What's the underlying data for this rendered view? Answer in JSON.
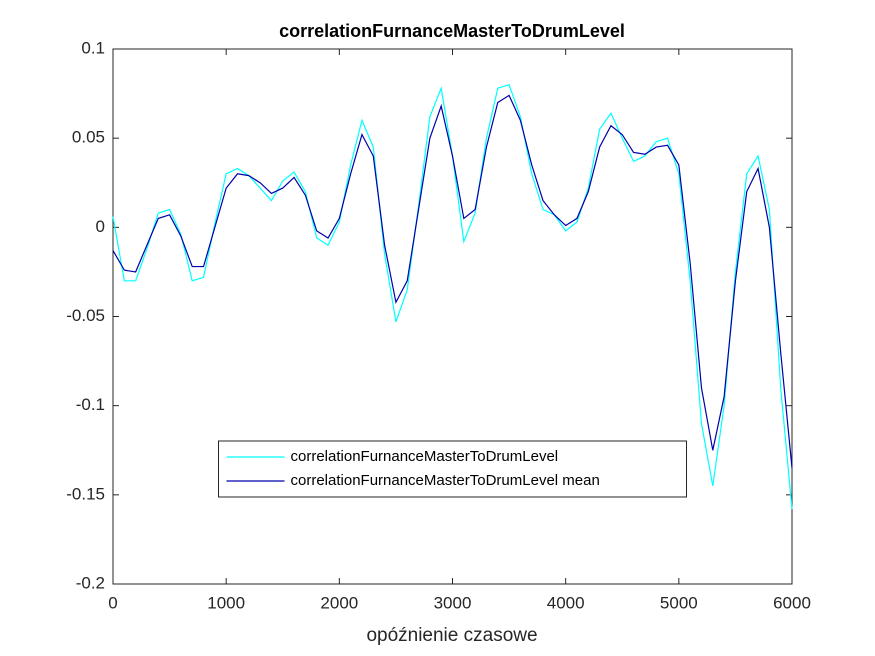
{
  "chart_data": {
    "type": "line",
    "title": "correlationFurnanceMasterToDrumLevel",
    "xlabel": "opóźnienie czasowe",
    "x": [
      0,
      100,
      200,
      300,
      400,
      500,
      600,
      700,
      800,
      900,
      1000,
      1100,
      1200,
      1300,
      1400,
      1500,
      1600,
      1700,
      1800,
      1900,
      2000,
      2100,
      2200,
      2300,
      2400,
      2500,
      2600,
      2700,
      2800,
      2900,
      3000,
      3100,
      3200,
      3300,
      3400,
      3500,
      3600,
      3700,
      3800,
      3900,
      4000,
      4100,
      4200,
      4300,
      4400,
      4500,
      4600,
      4700,
      4800,
      4900,
      5000,
      5100,
      5200,
      5300,
      5400,
      5500,
      5600,
      5700,
      5800,
      5900,
      6000
    ],
    "series": [
      {
        "name": "correlationFurnanceMasterToDrumLevel",
        "color": "#00ffff",
        "values": [
          0.006,
          -0.03,
          -0.03,
          -0.012,
          0.008,
          0.01,
          -0.004,
          -0.03,
          -0.028,
          0.002,
          0.03,
          0.033,
          0.029,
          0.022,
          0.015,
          0.026,
          0.031,
          0.02,
          -0.006,
          -0.01,
          0.003,
          0.035,
          0.06,
          0.045,
          -0.015,
          -0.053,
          -0.035,
          0.012,
          0.062,
          0.078,
          0.04,
          -0.008,
          0.008,
          0.05,
          0.078,
          0.08,
          0.062,
          0.03,
          0.01,
          0.007,
          -0.002,
          0.003,
          0.022,
          0.055,
          0.064,
          0.05,
          0.037,
          0.04,
          0.048,
          0.05,
          0.03,
          -0.03,
          -0.11,
          -0.145,
          -0.1,
          -0.025,
          0.03,
          0.04,
          0.01,
          -0.09,
          -0.158
        ]
      },
      {
        "name": "correlationFurnanceMasterToDrumLevel mean",
        "color": "#0000aa",
        "values": [
          -0.013,
          -0.024,
          -0.025,
          -0.01,
          0.005,
          0.007,
          -0.005,
          -0.022,
          -0.022,
          0.0,
          0.022,
          0.03,
          0.029,
          0.025,
          0.019,
          0.022,
          0.028,
          0.018,
          -0.002,
          -0.006,
          0.005,
          0.03,
          0.052,
          0.04,
          -0.01,
          -0.042,
          -0.03,
          0.01,
          0.05,
          0.068,
          0.04,
          0.005,
          0.01,
          0.045,
          0.07,
          0.074,
          0.06,
          0.035,
          0.015,
          0.007,
          0.001,
          0.005,
          0.02,
          0.045,
          0.057,
          0.052,
          0.042,
          0.041,
          0.045,
          0.046,
          0.035,
          -0.02,
          -0.09,
          -0.125,
          -0.095,
          -0.03,
          0.02,
          0.033,
          0.0,
          -0.07,
          -0.135
        ]
      }
    ],
    "xlim": [
      0,
      6000
    ],
    "xticks": [
      0,
      1000,
      2000,
      3000,
      4000,
      5000,
      6000
    ],
    "ylim": [
      -0.2,
      0.1
    ],
    "yticks": [
      -0.2,
      -0.15,
      -0.1,
      -0.05,
      0,
      0.05,
      0.1
    ],
    "grid": false,
    "legend": "south"
  }
}
